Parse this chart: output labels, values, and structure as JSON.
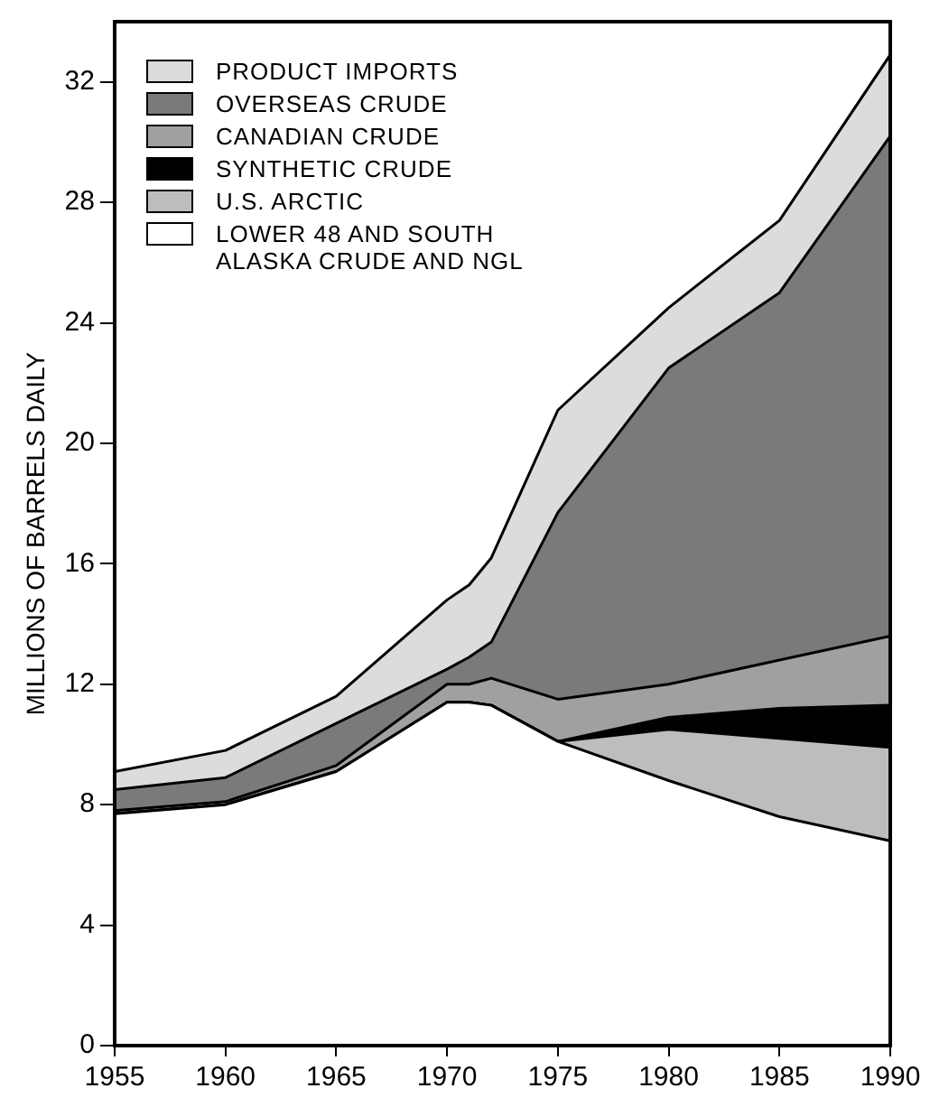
{
  "chart_data": {
    "type": "area",
    "stacked": true,
    "ylabel": "MILLIONS OF BARRELS DAILY",
    "x": [
      1955,
      1960,
      1965,
      1970,
      1971,
      1972,
      1975,
      1980,
      1985,
      1990
    ],
    "xlim": [
      1955,
      1990
    ],
    "xticks": [
      1955,
      1960,
      1965,
      1970,
      1975,
      1980,
      1985,
      1990
    ],
    "ylim": [
      0,
      34
    ],
    "yticks": [
      0,
      4,
      8,
      12,
      16,
      20,
      24,
      28,
      32
    ],
    "grid": false,
    "legend": "top left",
    "series": [
      {
        "name": "LOWER 48 AND SOUTH ALASKA CRUDE AND NGL",
        "color": "#ffffff",
        "values": [
          7.7,
          8.0,
          9.1,
          11.4,
          11.4,
          11.3,
          10.1,
          8.8,
          7.6,
          6.8
        ]
      },
      {
        "name": "U.S. ARCTIC",
        "color": "#bdbdbd",
        "values": [
          0,
          0,
          0,
          0,
          0,
          0,
          0,
          1.7,
          2.6,
          3.1
        ]
      },
      {
        "name": "SYNTHETIC CRUDE",
        "color": "#000000",
        "values": [
          0,
          0,
          0,
          0,
          0,
          0,
          0,
          0.4,
          1.0,
          1.4
        ]
      },
      {
        "name": "CANADIAN CRUDE",
        "color": "#a0a0a0",
        "values": [
          0.1,
          0.1,
          0.2,
          0.6,
          0.6,
          0.9,
          1.4,
          1.1,
          1.6,
          2.3
        ]
      },
      {
        "name": "OVERSEAS CRUDE",
        "color": "#7a7a7a",
        "values": [
          0.7,
          0.8,
          1.4,
          0.5,
          0.9,
          1.2,
          6.2,
          10.5,
          12.2,
          16.6
        ]
      },
      {
        "name": "PRODUCT IMPORTS",
        "color": "#dcdcdc",
        "values": [
          0.6,
          0.9,
          0.9,
          2.3,
          2.4,
          2.8,
          3.4,
          2.0,
          2.4,
          2.7
        ]
      }
    ]
  }
}
